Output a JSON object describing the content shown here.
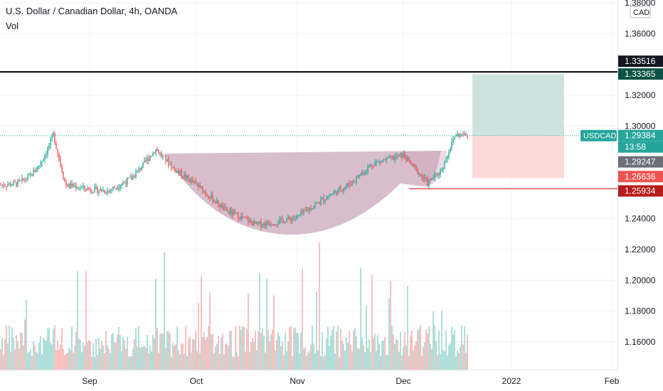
{
  "header": {
    "title": "U.S. Dollar / Canadian Dollar, 4h, OANDA",
    "volume_label": "Vol"
  },
  "price_scale": {
    "currency": "CAD"
  },
  "colors": {
    "up": "#26a69a",
    "down": "#ef5350",
    "cup_fill": "#c8a2b8",
    "target_zone": "#c5ddd8",
    "stop_zone": "#fcd5d4",
    "resistance": "#000000",
    "support": "#d32f2f",
    "last_price": "#26a69a",
    "grid": "#f0f3fa"
  },
  "markers": {
    "resistance": {
      "label": "1.33516",
      "value": 1.33516
    },
    "target": {
      "label": "1.33365",
      "value": 1.33365
    },
    "last": {
      "symbol": "USDCAD",
      "label": "1.29384",
      "value": 1.29384,
      "countdown": "13:58"
    },
    "entry": {
      "label": "1.29247",
      "value": 1.29247
    },
    "stop": {
      "label": "1.26636",
      "value": 1.26636
    },
    "support": {
      "label": "1.25934",
      "value": 1.25934
    }
  },
  "chart_data": {
    "type": "candlestick",
    "title": "U.S. Dollar / Canadian Dollar, 4h, OANDA",
    "y_ticks": [
      "1.38000",
      "1.36000",
      "1.32000",
      "1.30000",
      "1.24000",
      "1.22000",
      "1.20000",
      "1.18000",
      "1.16000"
    ],
    "y_tick_values": [
      1.38,
      1.36,
      1.32,
      1.3,
      1.24,
      1.22,
      1.2,
      1.18,
      1.16
    ],
    "x_ticks": [
      "Sep",
      "Oct",
      "Nov",
      "Dec",
      "2022",
      "Feb"
    ],
    "ylim": [
      1.143,
      1.385
    ],
    "key_prices": [
      {
        "date": "Aug 20",
        "price": 1.2945
      },
      {
        "date": "Aug 25",
        "price": 1.262
      },
      {
        "date": "Sep 1",
        "price": 1.259
      },
      {
        "date": "Sep 7",
        "price": 1.258
      },
      {
        "date": "Sep 14",
        "price": 1.266
      },
      {
        "date": "Sep 20",
        "price": 1.285
      },
      {
        "date": "Sep 27",
        "price": 1.272
      },
      {
        "date": "Oct 4",
        "price": 1.262
      },
      {
        "date": "Oct 12",
        "price": 1.246
      },
      {
        "date": "Oct 20",
        "price": 1.236
      },
      {
        "date": "Oct 27",
        "price": 1.238
      },
      {
        "date": "Nov 3",
        "price": 1.241
      },
      {
        "date": "Nov 10",
        "price": 1.252
      },
      {
        "date": "Nov 17",
        "price": 1.262
      },
      {
        "date": "Nov 24",
        "price": 1.276
      },
      {
        "date": "Dec 1",
        "price": 1.281
      },
      {
        "date": "Dec 6",
        "price": 1.263
      },
      {
        "date": "Dec 10",
        "price": 1.271
      },
      {
        "date": "Dec 16",
        "price": 1.2945
      },
      {
        "date": "Dec 20",
        "price": 1.29384
      }
    ],
    "volume": "shown as bars at the bottom, no scale printed"
  }
}
